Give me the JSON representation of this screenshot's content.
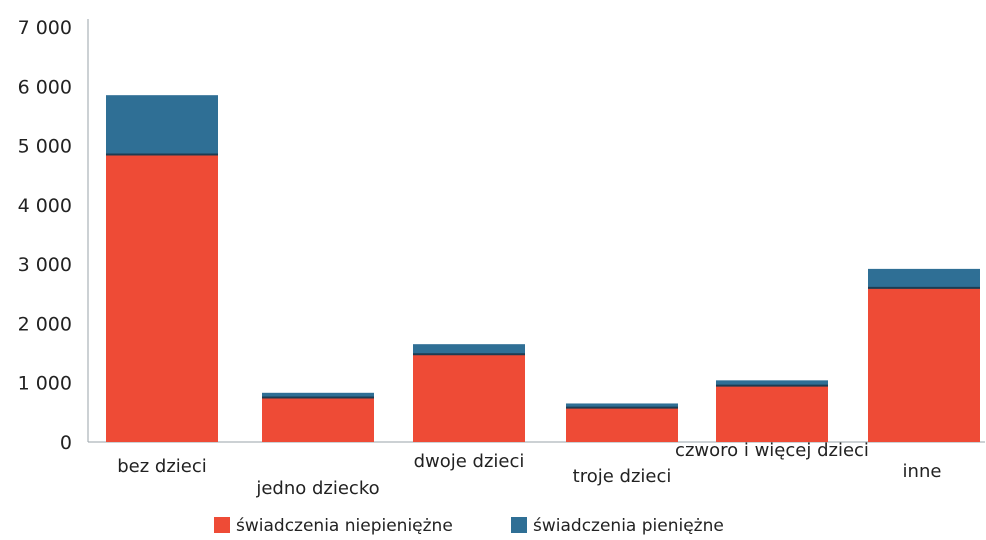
{
  "chart_data": {
    "type": "bar",
    "stacked": true,
    "title": "",
    "xlabel": "",
    "ylabel": "",
    "categories": [
      "bez dzieci",
      "jedno dziecko",
      "dwoje dzieci",
      "troje dzieci",
      "czworo i więcej dzieci",
      "inne"
    ],
    "series": [
      {
        "name": "świadczenia niepieniężne",
        "color": "#ee4b36",
        "values": [
          4850,
          750,
          1480,
          580,
          950,
          2600
        ]
      },
      {
        "name": "świadczenia pieniężne",
        "color": "#2f6f95",
        "values": [
          1000,
          80,
          170,
          70,
          90,
          320
        ]
      }
    ],
    "ylim": [
      0,
      7000
    ],
    "yticks": [
      {
        "value": 0,
        "label": "0"
      },
      {
        "value": 1000,
        "label": "1 000"
      },
      {
        "value": 2000,
        "label": "2 000"
      },
      {
        "value": 3000,
        "label": "3 000"
      },
      {
        "value": 4000,
        "label": "4 000"
      },
      {
        "value": 5000,
        "label": "5 000"
      },
      {
        "value": 6000,
        "label": "6 000"
      },
      {
        "value": 7000,
        "label": "7 000"
      }
    ],
    "grid": false,
    "legend_position": "bottom"
  }
}
